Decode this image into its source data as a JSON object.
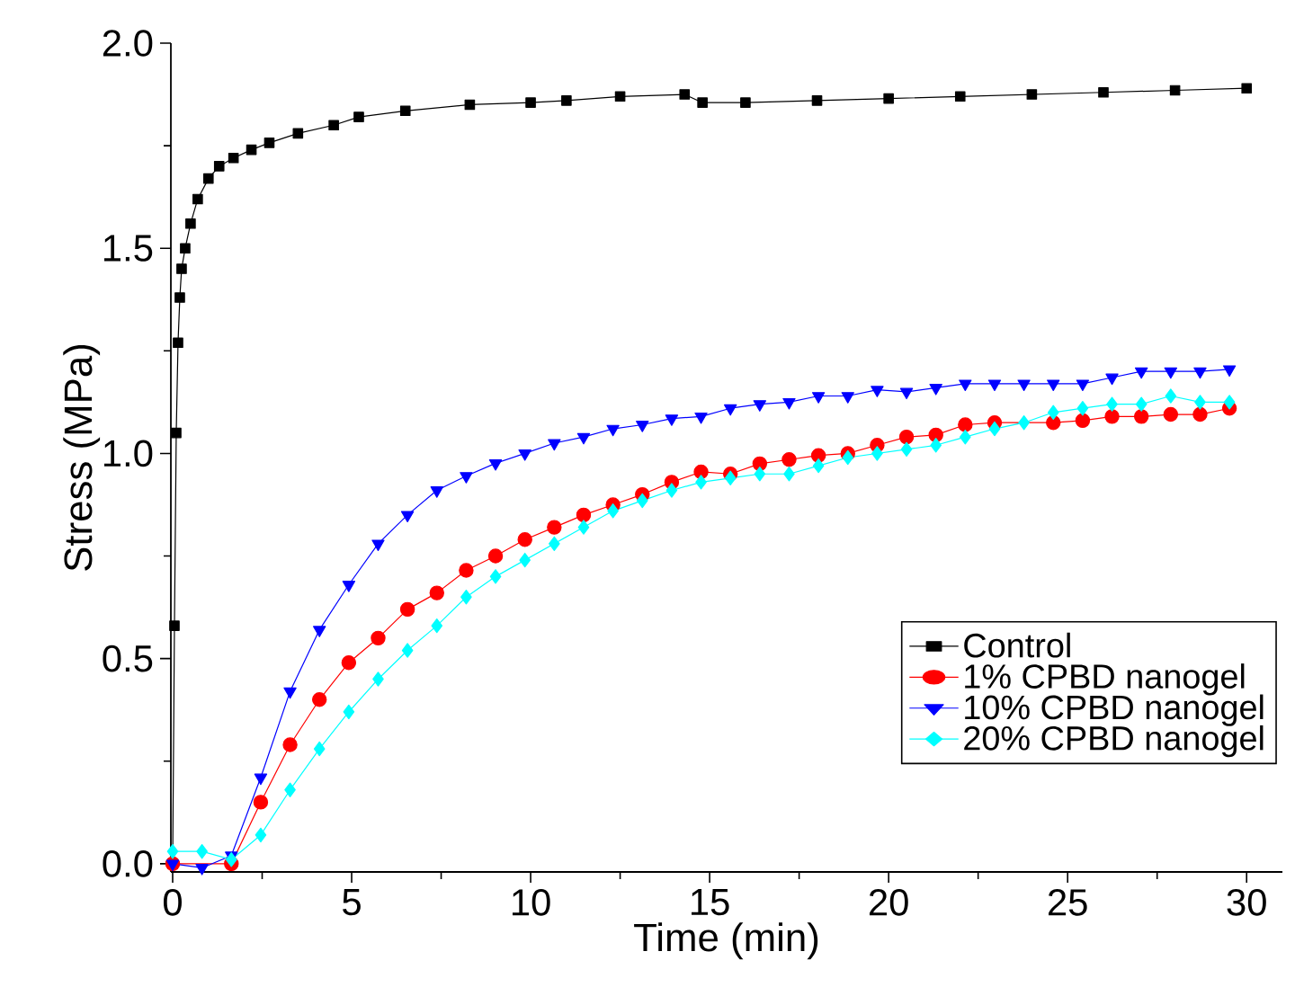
{
  "chart_data": {
    "type": "line",
    "xlabel": "Time (min)",
    "ylabel": "Stress (MPa)",
    "xlim": [
      -0.05,
      31
    ],
    "ylim": [
      -0.02,
      2.0
    ],
    "xticks": [
      0,
      5,
      10,
      15,
      20,
      25,
      30
    ],
    "yticks": [
      {
        "value": 0,
        "label": "0.0"
      },
      {
        "value": 0.5,
        "label": "0.5"
      },
      {
        "value": 1.0,
        "label": "1.0"
      },
      {
        "value": 1.5,
        "label": "1.5"
      },
      {
        "value": 2.0,
        "label": "2.0"
      }
    ],
    "grid": false,
    "legend": "bottom right",
    "line_style": "solid",
    "series": [
      {
        "name": "Control",
        "color": "#000000",
        "marker": "square",
        "x": [
          0,
          0.05,
          0.1,
          0.15,
          0.2,
          0.25,
          0.35,
          0.5,
          0.7,
          1.0,
          1.3,
          1.7,
          2.2,
          2.7,
          3.5,
          4.5,
          5.2,
          6.5,
          8.3,
          10,
          11,
          12.5,
          14.3,
          14.8,
          16,
          18,
          20,
          22,
          24,
          26,
          28,
          30
        ],
        "values": [
          0,
          0.58,
          1.05,
          1.27,
          1.38,
          1.45,
          1.5,
          1.56,
          1.62,
          1.67,
          1.7,
          1.72,
          1.74,
          1.757,
          1.78,
          1.8,
          1.82,
          1.835,
          1.85,
          1.855,
          1.86,
          1.87,
          1.875,
          1.855,
          1.855,
          1.86,
          1.865,
          1.87,
          1.875,
          1.88,
          1.885,
          1.89
        ]
      },
      {
        "name": "1% CPBD nanogel",
        "color": "#ff0000",
        "marker": "circle",
        "x": [
          0,
          0.82,
          1.64,
          2.46,
          3.28,
          4.1,
          4.92,
          5.74,
          6.56,
          7.38,
          8.2,
          9.02,
          9.84,
          10.66,
          11.48,
          12.3,
          13.12,
          13.94,
          14.76,
          15.58,
          16.4,
          17.22,
          18.04,
          18.86,
          19.68,
          20.5,
          21.32,
          22.14,
          22.96,
          23.78,
          24.6,
          25.42,
          26.24,
          27.06,
          27.88,
          28.7,
          29.52
        ],
        "values": [
          0,
          null,
          0,
          0.15,
          0.29,
          0.4,
          0.49,
          0.55,
          0.62,
          0.66,
          0.715,
          0.75,
          0.79,
          0.82,
          0.85,
          0.875,
          0.9,
          0.93,
          0.955,
          0.95,
          0.975,
          0.985,
          0.995,
          1.0,
          1.02,
          1.04,
          1.045,
          1.07,
          1.075,
          null,
          1.075,
          1.08,
          1.09,
          1.09,
          1.095,
          1.095,
          1.11
        ]
      },
      {
        "name": "10% CPBD nanogel",
        "color": "#0000ff",
        "marker": "triangle",
        "x": [
          0,
          0.82,
          1.64,
          2.46,
          3.28,
          4.1,
          4.92,
          5.74,
          6.56,
          7.38,
          8.2,
          9.02,
          9.84,
          10.66,
          11.48,
          12.3,
          13.12,
          13.94,
          14.76,
          15.58,
          16.4,
          17.22,
          18.04,
          18.86,
          19.68,
          20.5,
          21.32,
          22.14,
          22.96,
          23.78,
          24.6,
          25.42,
          26.24,
          27.06,
          27.88,
          28.7,
          29.52
        ],
        "values": [
          0,
          -0.01,
          0.02,
          0.21,
          0.42,
          0.57,
          0.68,
          0.78,
          0.85,
          0.91,
          0.945,
          0.976,
          1.0,
          1.025,
          1.04,
          1.06,
          1.07,
          1.085,
          1.09,
          1.11,
          1.12,
          1.125,
          1.14,
          1.14,
          1.155,
          1.15,
          1.16,
          1.17,
          1.17,
          1.17,
          1.17,
          1.17,
          1.185,
          1.2,
          1.2,
          1.2,
          1.205
        ]
      },
      {
        "name": "20% CPBD nanogel",
        "color": "#00ffff",
        "marker": "diamond",
        "x": [
          0,
          0.82,
          1.64,
          2.46,
          3.28,
          4.1,
          4.92,
          5.74,
          6.56,
          7.38,
          8.2,
          9.02,
          9.84,
          10.66,
          11.48,
          12.3,
          13.12,
          13.94,
          14.76,
          15.58,
          16.4,
          17.22,
          18.04,
          18.86,
          19.68,
          20.5,
          21.32,
          22.14,
          22.96,
          23.78,
          24.6,
          25.42,
          26.24,
          27.06,
          27.88,
          28.7,
          29.52
        ],
        "values": [
          0.03,
          0.03,
          0.01,
          0.07,
          0.18,
          0.28,
          0.37,
          0.45,
          0.52,
          0.58,
          0.65,
          0.7,
          0.74,
          0.78,
          0.82,
          0.86,
          0.885,
          0.91,
          0.93,
          0.94,
          0.95,
          0.95,
          0.97,
          0.99,
          1.0,
          1.01,
          1.02,
          1.04,
          1.06,
          1.075,
          1.1,
          1.11,
          1.12,
          1.12,
          1.14,
          1.125,
          1.125
        ]
      }
    ]
  }
}
